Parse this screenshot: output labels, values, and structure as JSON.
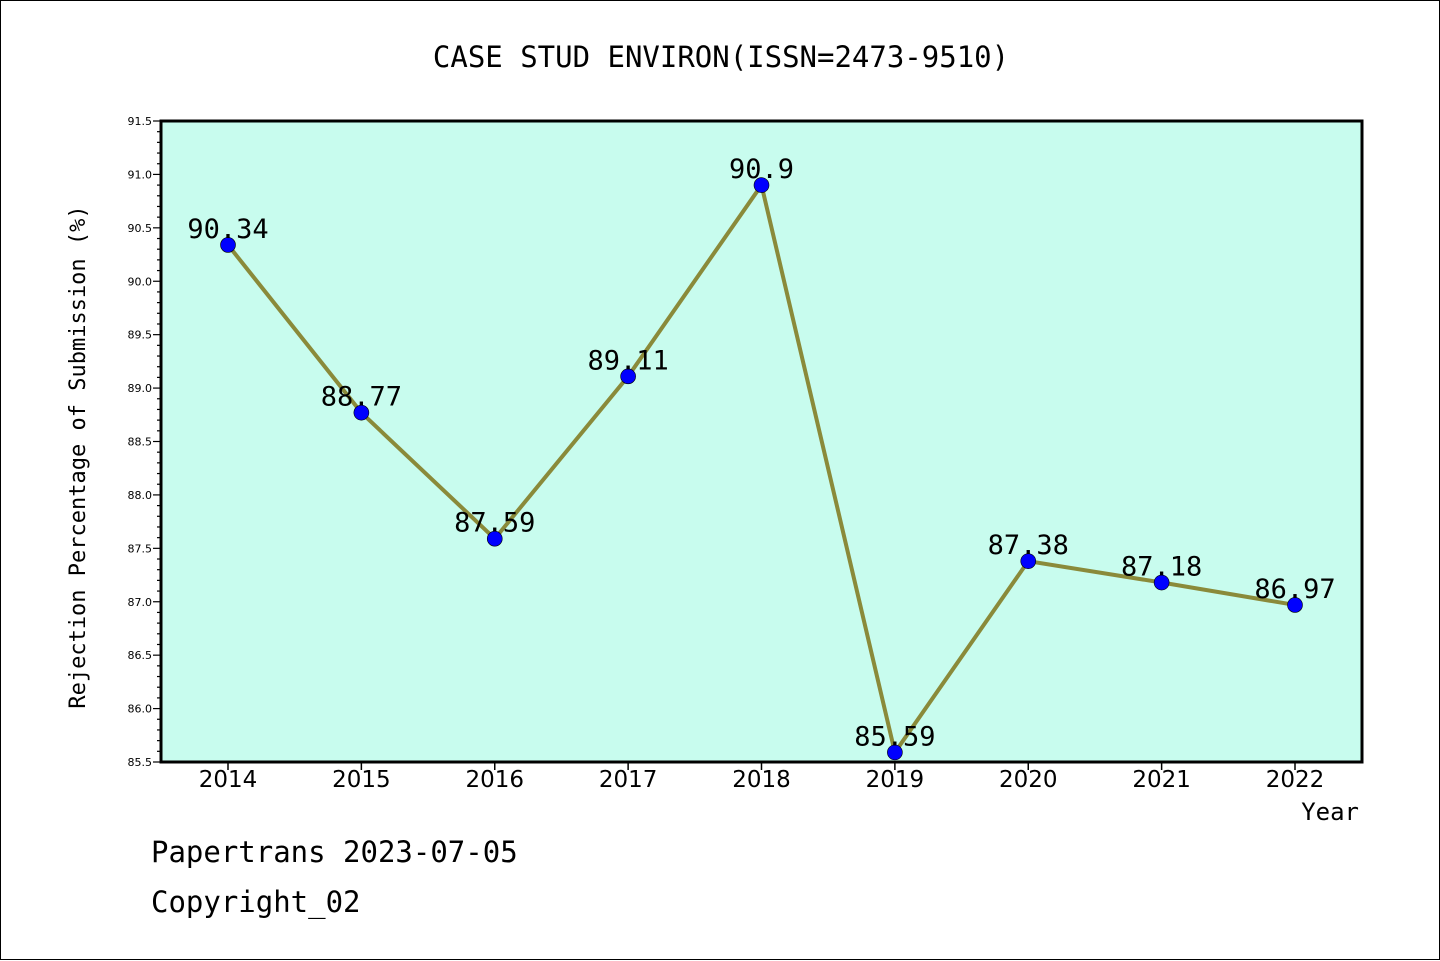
{
  "chart_data": {
    "type": "line",
    "title": "CASE STUD ENVIRON(ISSN=2473-9510)",
    "xlabel": "Year",
    "ylabel": "Rejection Percentage of Submission (%)",
    "categories": [
      "2014",
      "2015",
      "2016",
      "2017",
      "2018",
      "2019",
      "2020",
      "2021",
      "2022"
    ],
    "values": [
      90.34,
      88.77,
      87.59,
      89.11,
      90.9,
      85.59,
      87.38,
      87.18,
      86.97
    ],
    "data_labels": [
      "90.34",
      "88.77",
      "87.59",
      "89.11",
      "90.9",
      "85.59",
      "87.38",
      "87.18",
      "86.97"
    ],
    "ylim": [
      85.5,
      91.5
    ],
    "yticks": [
      "85.5",
      "86.0",
      "86.5",
      "87.0",
      "87.5",
      "88.0",
      "88.5",
      "89.0",
      "89.5",
      "90.0",
      "90.5",
      "91.0",
      "91.5"
    ],
    "grid": false,
    "colors": {
      "plot_background": "#c8fcee",
      "line": "#8a8a3a",
      "marker": "#0000ff"
    }
  },
  "footer": {
    "line1": "Papertrans 2023-07-05",
    "line2": "Copyright_02"
  }
}
